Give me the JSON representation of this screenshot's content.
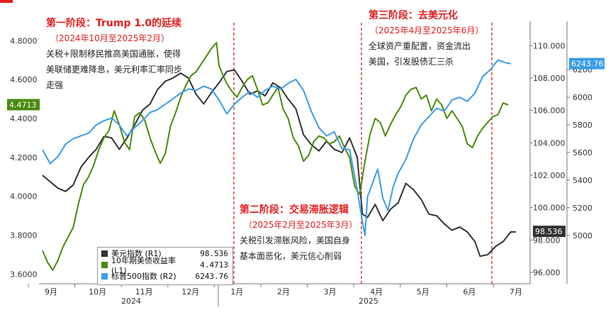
{
  "annotations": {
    "phase1": {
      "title": "第一阶段：Trump 1.0的延续",
      "period": "（2024年10月至2025年2月）",
      "lines": [
        "关税+限制移民推高美国通胀，使得",
        "美联储更难降息，美元利率汇率同步",
        "走强"
      ]
    },
    "phase2": {
      "title": "第二阶段：交易滞胀逻辑",
      "period": "（2025年2月至2025年3月）",
      "lines": [
        "关税引发滞胀风险，美国自身",
        "基本面恶化，美元信心削弱"
      ]
    },
    "phase3": {
      "title": "第三阶段：去美元化",
      "period": "（2025年4月至2025年6月）",
      "lines": [
        "全球资产重配置，资金流出",
        "美国，引发股债汇三杀"
      ]
    }
  },
  "legend": [
    {
      "name": "美元指数 (R1)",
      "value": "98.536",
      "color": "#333333"
    },
    {
      "name": "10年期美债收益率 (L1)",
      "value": "4.4713",
      "color": "#4a8a0e"
    },
    {
      "name": "标普500指数 (R2)",
      "value": "6243.76",
      "color": "#3a9de8"
    }
  ],
  "chart_data": {
    "type": "line",
    "x_months": [
      "9月",
      "10月",
      "11月",
      "12月",
      "1月",
      "2月",
      "3月",
      "4月",
      "5月",
      "6月",
      "7月"
    ],
    "x_years": [
      "2024",
      "2025"
    ],
    "phase_dividers": [
      "2025-01-01",
      "2025-03-27",
      "2025-06-20"
    ],
    "axes": {
      "left": {
        "name": "L1",
        "lim": [
          3.55,
          4.9
        ],
        "ticks": [
          "3.6000",
          "3.8000",
          "4.0000",
          "4.2000",
          "4.4000",
          "4.6000",
          "4.8000"
        ]
      },
      "right1": {
        "name": "R1",
        "lim": [
          95.3,
          111.5
        ],
        "ticks": [
          "96.000",
          "98.000",
          "100.000",
          "102.000",
          "104.000",
          "106.000",
          "108.000",
          "110.000"
        ]
      },
      "right2": {
        "name": "R2",
        "lim": [
          4650,
          6550
        ],
        "ticks": [
          "5000",
          "5200",
          "5400",
          "5600",
          "5800",
          "6000",
          "6200"
        ]
      }
    },
    "last_labels": {
      "L1": "4.4713",
      "R1": "98.536",
      "R2": "6243.76"
    },
    "series": [
      {
        "name": "美元指数 (R1)",
        "axis": "right1",
        "color": "#333333",
        "values": [
          [
            0,
            102.0
          ],
          [
            0.3,
            101.6
          ],
          [
            0.6,
            101.2
          ],
          [
            0.9,
            101.0
          ],
          [
            1.2,
            101.4
          ],
          [
            1.5,
            102.5
          ],
          [
            1.8,
            103.1
          ],
          [
            2.1,
            103.6
          ],
          [
            2.4,
            104.4
          ],
          [
            2.7,
            104.3
          ],
          [
            3.0,
            103.6
          ],
          [
            3.3,
            104.3
          ],
          [
            3.6,
            105.1
          ],
          [
            3.9,
            106.0
          ],
          [
            4.2,
            106.4
          ],
          [
            4.5,
            107.3
          ],
          [
            4.8,
            107.8
          ],
          [
            5.1,
            108.0
          ],
          [
            5.4,
            108.3
          ],
          [
            5.7,
            108.0
          ],
          [
            6.0,
            107.0
          ],
          [
            6.3,
            106.4
          ],
          [
            6.6,
            107.1
          ],
          [
            6.9,
            107.7
          ],
          [
            7.2,
            108.4
          ],
          [
            7.5,
            108.5
          ],
          [
            7.8,
            107.8
          ],
          [
            8.1,
            107.0
          ],
          [
            8.4,
            107.2
          ],
          [
            8.7,
            106.9
          ],
          [
            9.0,
            107.7
          ],
          [
            9.3,
            107.4
          ],
          [
            9.6,
            106.7
          ],
          [
            9.9,
            106.1
          ],
          [
            10.2,
            104.5
          ],
          [
            10.5,
            103.9
          ],
          [
            10.8,
            103.5
          ],
          [
            11.1,
            104.1
          ],
          [
            11.4,
            103.6
          ],
          [
            11.7,
            103.4
          ],
          [
            12.0,
            104.3
          ],
          [
            12.3,
            103.1
          ],
          [
            12.5,
            99.6
          ],
          [
            12.7,
            99.4
          ],
          [
            13.0,
            100.2
          ],
          [
            13.3,
            99.2
          ],
          [
            13.6,
            99.9
          ],
          [
            13.9,
            100.3
          ],
          [
            14.2,
            101.5
          ],
          [
            14.5,
            101.1
          ],
          [
            14.8,
            100.5
          ],
          [
            15.1,
            99.6
          ],
          [
            15.4,
            99.5
          ],
          [
            15.7,
            99.0
          ],
          [
            16.0,
            98.6
          ],
          [
            16.3,
            98.8
          ],
          [
            16.6,
            98.5
          ],
          [
            16.9,
            97.9
          ],
          [
            17.1,
            97.0
          ],
          [
            17.4,
            97.1
          ],
          [
            17.7,
            97.6
          ],
          [
            18.0,
            97.9
          ],
          [
            18.3,
            98.5
          ],
          [
            18.5,
            98.5
          ]
        ]
      },
      {
        "name": "10年期美债收益率 (L1)",
        "axis": "left",
        "color": "#4a8a0e",
        "values": [
          [
            0,
            3.72
          ],
          [
            0.2,
            3.66
          ],
          [
            0.4,
            3.62
          ],
          [
            0.6,
            3.67
          ],
          [
            0.8,
            3.74
          ],
          [
            1.0,
            3.79
          ],
          [
            1.2,
            3.84
          ],
          [
            1.4,
            3.96
          ],
          [
            1.6,
            4.06
          ],
          [
            1.8,
            4.1
          ],
          [
            2.0,
            4.16
          ],
          [
            2.2,
            4.24
          ],
          [
            2.4,
            4.3
          ],
          [
            2.6,
            4.34
          ],
          [
            2.8,
            4.44
          ],
          [
            3.0,
            4.37
          ],
          [
            3.2,
            4.28
          ],
          [
            3.4,
            4.24
          ],
          [
            3.6,
            4.41
          ],
          [
            3.8,
            4.43
          ],
          [
            4.0,
            4.39
          ],
          [
            4.2,
            4.3
          ],
          [
            4.4,
            4.23
          ],
          [
            4.6,
            4.17
          ],
          [
            4.8,
            4.22
          ],
          [
            5.0,
            4.36
          ],
          [
            5.2,
            4.43
          ],
          [
            5.4,
            4.51
          ],
          [
            5.6,
            4.57
          ],
          [
            5.8,
            4.62
          ],
          [
            6.0,
            4.64
          ],
          [
            6.2,
            4.68
          ],
          [
            6.4,
            4.72
          ],
          [
            6.6,
            4.76
          ],
          [
            6.8,
            4.79
          ],
          [
            6.9,
            4.67
          ],
          [
            7.2,
            4.58
          ],
          [
            7.4,
            4.54
          ],
          [
            7.6,
            4.51
          ],
          [
            7.8,
            4.56
          ],
          [
            8.0,
            4.6
          ],
          [
            8.2,
            4.62
          ],
          [
            8.4,
            4.55
          ],
          [
            8.6,
            4.47
          ],
          [
            8.8,
            4.48
          ],
          [
            9.0,
            4.52
          ],
          [
            9.2,
            4.56
          ],
          [
            9.4,
            4.45
          ],
          [
            9.6,
            4.4
          ],
          [
            9.8,
            4.3
          ],
          [
            10.0,
            4.26
          ],
          [
            10.2,
            4.18
          ],
          [
            10.4,
            4.21
          ],
          [
            10.6,
            4.28
          ],
          [
            10.8,
            4.31
          ],
          [
            11.0,
            4.3
          ],
          [
            11.2,
            4.27
          ],
          [
            11.4,
            4.28
          ],
          [
            11.6,
            4.31
          ],
          [
            11.8,
            4.25
          ],
          [
            12.0,
            4.2
          ],
          [
            12.2,
            4.05
          ],
          [
            12.4,
            4.01
          ],
          [
            12.6,
            4.18
          ],
          [
            12.8,
            4.32
          ],
          [
            13.0,
            4.4
          ],
          [
            13.2,
            4.38
          ],
          [
            13.4,
            4.31
          ],
          [
            13.6,
            4.37
          ],
          [
            13.8,
            4.42
          ],
          [
            14.0,
            4.46
          ],
          [
            14.2,
            4.52
          ],
          [
            14.4,
            4.55
          ],
          [
            14.6,
            4.56
          ],
          [
            14.8,
            4.5
          ],
          [
            15.0,
            4.52
          ],
          [
            15.2,
            4.44
          ],
          [
            15.4,
            4.5
          ],
          [
            15.6,
            4.47
          ],
          [
            15.8,
            4.4
          ],
          [
            16.0,
            4.44
          ],
          [
            16.2,
            4.4
          ],
          [
            16.4,
            4.36
          ],
          [
            16.6,
            4.27
          ],
          [
            16.8,
            4.25
          ],
          [
            17.0,
            4.31
          ],
          [
            17.2,
            4.35
          ],
          [
            17.4,
            4.38
          ],
          [
            17.6,
            4.41
          ],
          [
            17.8,
            4.42
          ],
          [
            18.0,
            4.48
          ],
          [
            18.2,
            4.47
          ]
        ]
      },
      {
        "name": "标普500指数 (R2)",
        "axis": "right2",
        "color": "#3a9de8",
        "values": [
          [
            0,
            5620
          ],
          [
            0.3,
            5520
          ],
          [
            0.6,
            5570
          ],
          [
            0.9,
            5660
          ],
          [
            1.2,
            5700
          ],
          [
            1.5,
            5720
          ],
          [
            1.8,
            5740
          ],
          [
            2.1,
            5800
          ],
          [
            2.4,
            5830
          ],
          [
            2.7,
            5850
          ],
          [
            3.0,
            5800
          ],
          [
            3.3,
            5720
          ],
          [
            3.6,
            5780
          ],
          [
            3.9,
            5830
          ],
          [
            4.2,
            5890
          ],
          [
            4.5,
            5910
          ],
          [
            4.8,
            5950
          ],
          [
            5.1,
            5990
          ],
          [
            5.4,
            6030
          ],
          [
            5.7,
            6060
          ],
          [
            6.0,
            6050
          ],
          [
            6.3,
            6080
          ],
          [
            6.6,
            6060
          ],
          [
            6.9,
            5980
          ],
          [
            7.2,
            5880
          ],
          [
            7.5,
            5950
          ],
          [
            7.8,
            6000
          ],
          [
            8.1,
            6040
          ],
          [
            8.4,
            6000
          ],
          [
            8.7,
            6050
          ],
          [
            9.0,
            6080
          ],
          [
            9.3,
            6060
          ],
          [
            9.6,
            6100
          ],
          [
            9.9,
            6130
          ],
          [
            10.2,
            6050
          ],
          [
            10.5,
            5900
          ],
          [
            10.8,
            5780
          ],
          [
            11.1,
            5720
          ],
          [
            11.4,
            5750
          ],
          [
            11.7,
            5630
          ],
          [
            12.0,
            5620
          ],
          [
            12.3,
            5330
          ],
          [
            12.5,
            5100
          ],
          [
            12.6,
            5000
          ],
          [
            12.7,
            5280
          ],
          [
            12.9,
            5380
          ],
          [
            13.1,
            5480
          ],
          [
            13.3,
            5270
          ],
          [
            13.5,
            5180
          ],
          [
            13.7,
            5350
          ],
          [
            13.9,
            5450
          ],
          [
            14.2,
            5550
          ],
          [
            14.5,
            5700
          ],
          [
            14.8,
            5800
          ],
          [
            15.1,
            5860
          ],
          [
            15.4,
            5920
          ],
          [
            15.7,
            5900
          ],
          [
            16.0,
            5980
          ],
          [
            16.3,
            6000
          ],
          [
            16.6,
            5970
          ],
          [
            16.9,
            6030
          ],
          [
            17.2,
            6150
          ],
          [
            17.5,
            6200
          ],
          [
            17.8,
            6270
          ],
          [
            18.1,
            6250
          ],
          [
            18.3,
            6243
          ]
        ]
      }
    ]
  }
}
